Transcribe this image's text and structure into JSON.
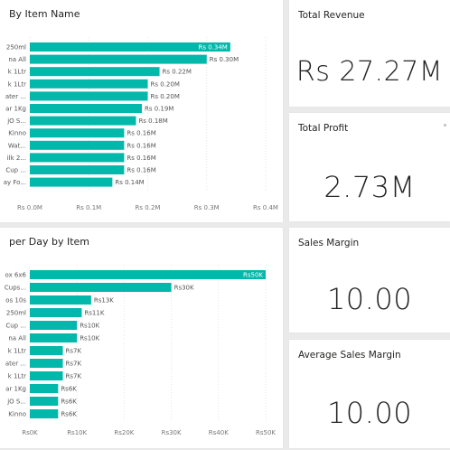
{
  "charts": [
    {
      "title": "By Item Name",
      "type": "bar",
      "orientation": "horizontal",
      "categories": [
        "250ml",
        "na All",
        "k 1Ltr",
        "k 1Ltr",
        "ater ...",
        "ar 1Kg",
        "jO S...",
        "Kinno",
        "Wat...",
        "ilk 2...",
        "Cup ...",
        "ay Fo..."
      ],
      "values": [
        0.34,
        0.3,
        0.22,
        0.2,
        0.2,
        0.19,
        0.18,
        0.16,
        0.16,
        0.16,
        0.16,
        0.14
      ],
      "value_labels": [
        "Rs 0.34M",
        "Rs 0.30M",
        "Rs 0.22M",
        "Rs 0.20M",
        "Rs 0.20M",
        "Rs 0.19M",
        "Rs 0.18M",
        "Rs 0.16M",
        "Rs 0.16M",
        "Rs 0.16M",
        "Rs 0.16M",
        "Rs 0.14M"
      ],
      "xlim": [
        0,
        0.4
      ],
      "ticks": [
        0,
        0.1,
        0.2,
        0.3,
        0.4
      ],
      "tick_labels": [
        "Rs 0.0M",
        "Rs 0.1M",
        "Rs 0.2M",
        "Rs 0.3M",
        "Rs 0.4M"
      ],
      "grid": true,
      "bar_color": "#01b8aa"
    },
    {
      "title": "per Day by Item",
      "type": "bar",
      "orientation": "horizontal",
      "categories": [
        "ox 6x6",
        "Cups...",
        "os 10s",
        "250ml",
        "Cup ...",
        "na All",
        "k 1Ltr",
        "ater ...",
        "k 1Ltr",
        "ar 1Kg",
        "jO S...",
        "Kinno"
      ],
      "values": [
        50,
        30,
        13,
        11,
        10,
        10,
        7,
        7,
        7,
        6,
        6,
        6
      ],
      "value_labels": [
        "Rs50K",
        "Rs30K",
        "Rs13K",
        "Rs11K",
        "Rs10K",
        "Rs10K",
        "Rs7K",
        "Rs7K",
        "Rs7K",
        "Rs6K",
        "Rs6K",
        "Rs6K"
      ],
      "xlim": [
        0,
        50
      ],
      "ticks": [
        0,
        10,
        20,
        30,
        40,
        50
      ],
      "tick_labels": [
        "Rs0K",
        "Rs10K",
        "Rs20K",
        "Rs30K",
        "Rs40K",
        "Rs50K"
      ],
      "grid": true,
      "bar_color": "#01b8aa"
    }
  ],
  "kpis": [
    {
      "title": "Total Revenue",
      "value": "Rs 27.27M"
    },
    {
      "title": "Total Profit",
      "value": "2.73M"
    },
    {
      "title": "Sales Margin",
      "value": "10.00"
    },
    {
      "title": "Average Sales Margin",
      "value": "10.00"
    }
  ],
  "chart_data": [
    {
      "type": "bar",
      "title": "By Item Name",
      "categories": [
        "250ml",
        "na All",
        "k 1Ltr",
        "k 1Ltr",
        "ater ...",
        "ar 1Kg",
        "jO S...",
        "Kinno",
        "Wat...",
        "ilk 2...",
        "Cup ...",
        "ay Fo..."
      ],
      "values": [
        0.34,
        0.3,
        0.22,
        0.2,
        0.2,
        0.19,
        0.18,
        0.16,
        0.16,
        0.16,
        0.16,
        0.14
      ],
      "xlim": [
        0,
        0.4
      ],
      "grid": true
    },
    {
      "type": "bar",
      "title": "per Day by Item",
      "categories": [
        "ox 6x6",
        "Cups...",
        "os 10s",
        "250ml",
        "Cup ...",
        "na All",
        "k 1Ltr",
        "ater ...",
        "k 1Ltr",
        "ar 1Kg",
        "jO S...",
        "Kinno"
      ],
      "values": [
        50,
        30,
        13,
        11,
        10,
        10,
        7,
        7,
        7,
        6,
        6,
        6
      ],
      "xlim": [
        0,
        50
      ],
      "grid": true
    }
  ]
}
